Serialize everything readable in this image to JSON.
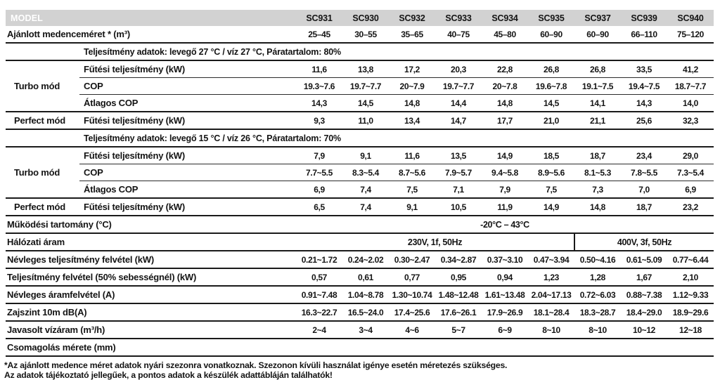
{
  "colors": {
    "header_bg": "#d2d2d2",
    "header_text": "#ffffff",
    "text": "#141414",
    "line": "#1a1a1a",
    "background": "#ffffff"
  },
  "header": {
    "model_label": "MODEL",
    "models": [
      "SC931",
      "SC930",
      "SC932",
      "SC933",
      "SC934",
      "SC935",
      "SC937",
      "SC939",
      "SC940"
    ]
  },
  "rows": [
    {
      "id": "pool-size",
      "label": "Ajánlott medenceméret * (m³)",
      "labelspan": 2,
      "values": [
        "25–45",
        "30–55",
        "35–65",
        "40–75",
        "45–80",
        "60–90",
        "60–90",
        "66–110",
        "75–120"
      ]
    },
    {
      "id": "section-1",
      "section": "Teljesítmény adatok: levegő 27 °C / víz 27 °C, Páratartalom: 80%"
    },
    {
      "id": "turbo1-heating",
      "group": "Turbo mód",
      "groupspan": 3,
      "label": "Fűtési teljesítmény (kW)",
      "sep": "thin",
      "values": [
        "11,6",
        "13,8",
        "17,2",
        "20,3",
        "22,8",
        "26,8",
        "26,8",
        "33,5",
        "41,2"
      ]
    },
    {
      "id": "turbo1-cop",
      "label": "COP",
      "sep": "thin",
      "ingroup": true,
      "values": [
        "19.3~7.6",
        "19.7~7.7",
        "20~7.9",
        "19.7~7.7",
        "20~7.8",
        "19.6~7.8",
        "19.1~7.5",
        "19.4~7.5",
        "18.7~7.7"
      ]
    },
    {
      "id": "turbo1-avgcop",
      "label": "Átlagos COP",
      "ingroup": true,
      "values": [
        "14,3",
        "14,5",
        "14,8",
        "14,4",
        "14,8",
        "14,5",
        "14,1",
        "14,3",
        "14,0"
      ]
    },
    {
      "id": "perfect1-heating",
      "group": "Perfect mód",
      "groupspan": 1,
      "label": "Fűtési teljesítmény (kW)",
      "values": [
        "9,3",
        "11,0",
        "13,4",
        "14,7",
        "17,7",
        "21,0",
        "21,1",
        "25,6",
        "32,3"
      ]
    },
    {
      "id": "section-2",
      "section": "Teljesítmény adatok: levegő 15 °C / víz 26 °C, Páratartalom: 70%"
    },
    {
      "id": "turbo2-heating",
      "group": "Turbo mód",
      "groupspan": 3,
      "label": "Fűtési teljesítmény (kW)",
      "sep": "thin",
      "values": [
        "7,9",
        "9,1",
        "11,6",
        "13,5",
        "14,9",
        "18,5",
        "18,7",
        "23,4",
        "29,0"
      ]
    },
    {
      "id": "turbo2-cop",
      "label": "COP",
      "sep": "thin",
      "ingroup": true,
      "values": [
        "7.7~5.5",
        "8.3~5.4",
        "8.7~5.6",
        "7.9~5.7",
        "9.4~5.8",
        "8.9~5.6",
        "8.1~5.3",
        "7.8~5.5",
        "7.3~5.4"
      ]
    },
    {
      "id": "turbo2-avgcop",
      "label": "Átlagos COP",
      "ingroup": true,
      "values": [
        "6,9",
        "7,4",
        "7,5",
        "7,1",
        "7,9",
        "7,5",
        "7,3",
        "7,0",
        "6,9"
      ]
    },
    {
      "id": "perfect2-heating",
      "group": "Perfect mód",
      "groupspan": 1,
      "label": "Fűtési teljesítmény (kW)",
      "values": [
        "6,5",
        "7,4",
        "9,1",
        "10,5",
        "11,9",
        "14,9",
        "14,8",
        "18,7",
        "23,2"
      ]
    },
    {
      "id": "working-range",
      "label": "Működési tartomány (°C)",
      "labelspan": 2,
      "wide_value": "-20°C – 43°C"
    },
    {
      "id": "power-supply",
      "label": "Hálózati áram",
      "labelspan": 2,
      "split": [
        {
          "text": "230V, 1f, 50Hz",
          "span": 6
        },
        {
          "text": "400V, 3f, 50Hz",
          "span": 3
        }
      ]
    },
    {
      "id": "rated-power-input",
      "label": "Névleges teljesítmény felvétel (kW)",
      "labelspan": 2,
      "values": [
        "0.21~1.72",
        "0.24~2.02",
        "0.30~2.47",
        "0.34~2.87",
        "0.37~3.10",
        "0.47~3.94",
        "0.50~4.16",
        "0.61~5.09",
        "0.77~6.44"
      ]
    },
    {
      "id": "power-input-50",
      "label": "Teljesítmény felvétel (50% sebességnél) (kW)",
      "labelspan": 2,
      "values": [
        "0,57",
        "0,61",
        "0,77",
        "0,95",
        "0,94",
        "1,23",
        "1,28",
        "1,67",
        "2,10"
      ]
    },
    {
      "id": "rated-current",
      "label": "Névleges áramfelvétel (A)",
      "labelspan": 2,
      "values": [
        "0.91~7.48",
        "1.04~8.78",
        "1.30~10.74",
        "1.48~12.48",
        "1.61~13.48",
        "2.04~17.13",
        "0.72~6.03",
        "0.88~7.38",
        "1.12~9.33"
      ]
    },
    {
      "id": "noise-level",
      "label": "Zajszint 10m dB(A)",
      "labelspan": 2,
      "values": [
        "16.3~22.7",
        "16.5~24.0",
        "17.4~25.6",
        "17.6~26.1",
        "17.9~26.9",
        "18.1~28.4",
        "18.3~28.7",
        "18.4~29.0",
        "18.9~29.6"
      ]
    },
    {
      "id": "water-flow",
      "label": "Javasolt vízáram (m³/h)",
      "labelspan": 2,
      "values": [
        "2~4",
        "3~4",
        "4~6",
        "5~7",
        "6~9",
        "8~10",
        "8~10",
        "10~12",
        "12~18"
      ]
    },
    {
      "id": "packing-size",
      "label": "Csomagolás mérete (mm)",
      "labelspan": 2,
      "empty": true
    }
  ],
  "footnotes": [
    "*Az ajánlott medence méret adatok nyári szezonra vonatkoznak. Szezonon kívüli használat igénye esetén méretezés szükséges.",
    "Az adatok tájékoztató jellegűek, a pontos adatok a készülék adattábláján találhatók!"
  ]
}
